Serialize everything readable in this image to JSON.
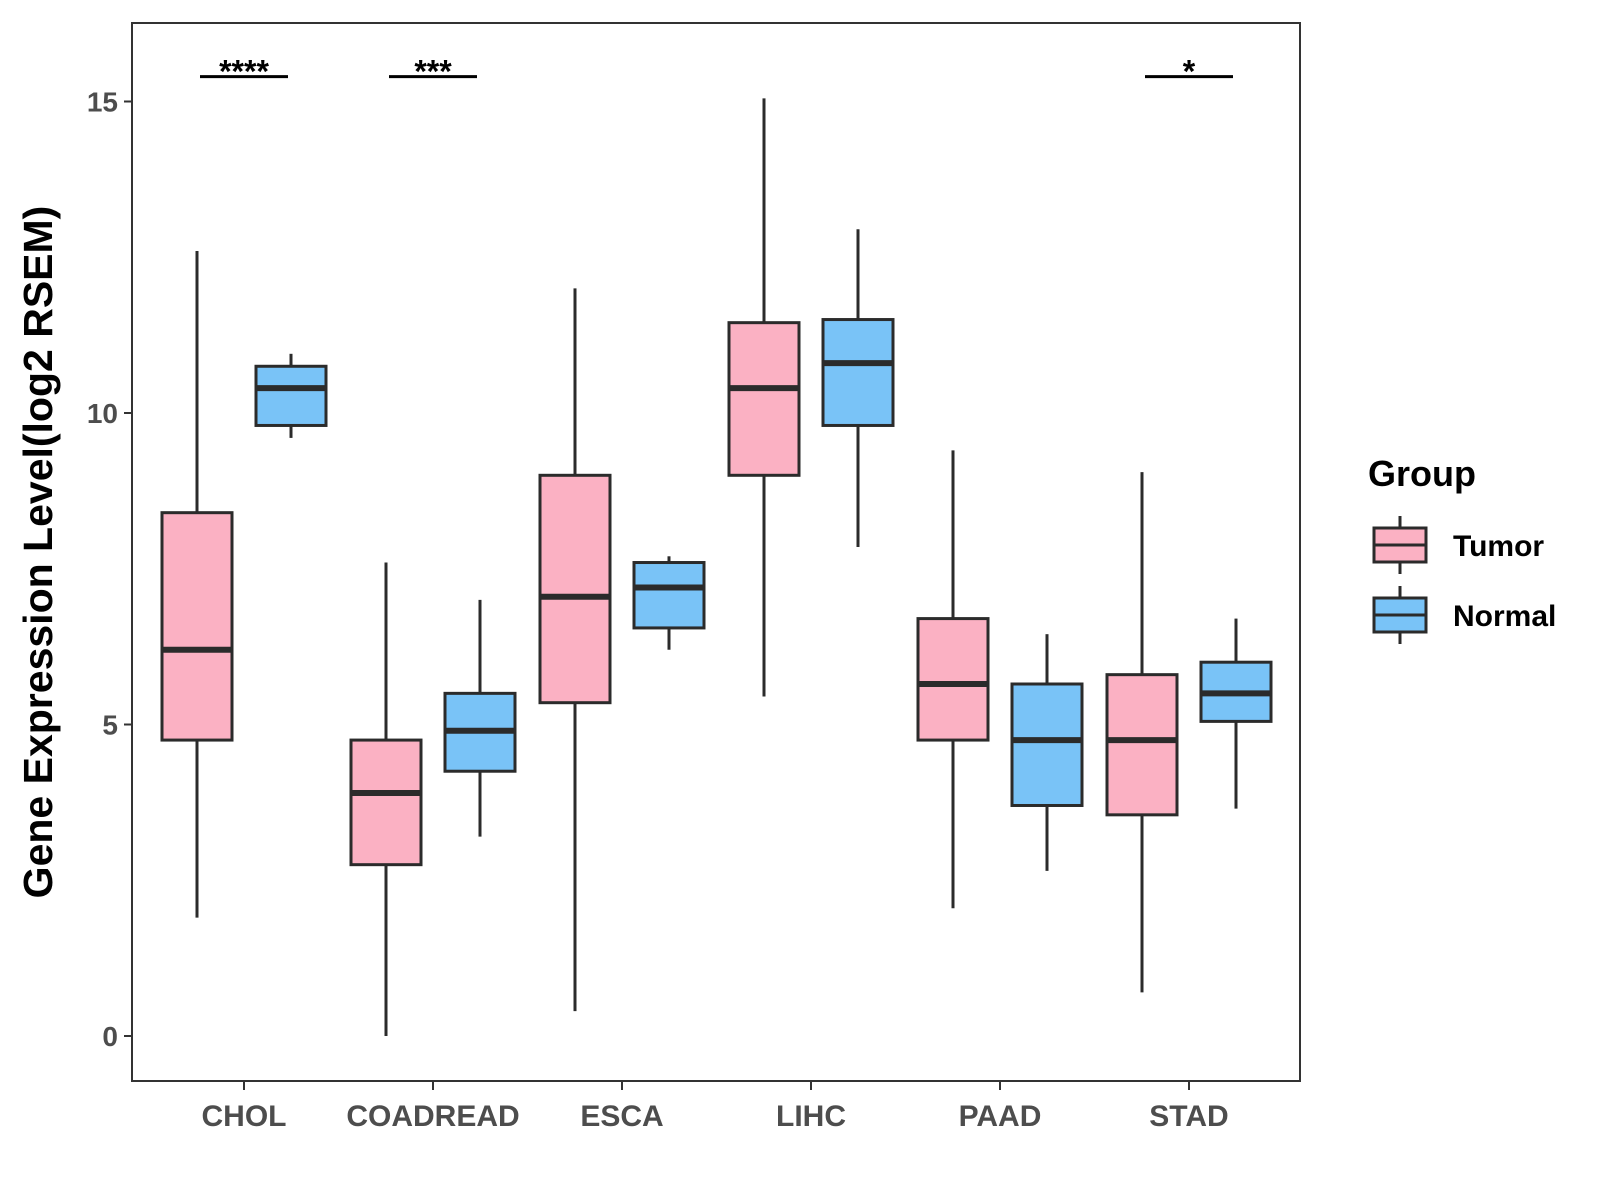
{
  "chart_data": {
    "type": "boxplot",
    "ylabel": "Gene Expression Level(log2 RSEM)",
    "xlabel": "",
    "ylim": [
      -0.75,
      16.2
    ],
    "yticks": [
      0,
      5,
      10,
      15
    ],
    "categories": [
      "CHOL",
      "COADREAD",
      "ESCA",
      "LIHC",
      "PAAD",
      "STAD"
    ],
    "legend": {
      "title": "Group",
      "position": "right",
      "entries": [
        {
          "name": "Tumor",
          "color": "#fbb1c3"
        },
        {
          "name": "Normal",
          "color": "#79c3f7"
        }
      ]
    },
    "series": [
      {
        "name": "Tumor",
        "color": "#fbb1c3",
        "boxes": [
          {
            "category": "CHOL",
            "min": 1.9,
            "q1": 4.75,
            "median": 6.2,
            "q3": 8.4,
            "max": 12.6
          },
          {
            "category": "COADREAD",
            "min": 0.0,
            "q1": 2.75,
            "median": 3.9,
            "q3": 4.75,
            "max": 7.6
          },
          {
            "category": "ESCA",
            "min": 0.4,
            "q1": 5.35,
            "median": 7.05,
            "q3": 9.0,
            "max": 12.0
          },
          {
            "category": "LIHC",
            "min": 5.45,
            "q1": 9.0,
            "median": 10.4,
            "q3": 11.45,
            "max": 15.05
          },
          {
            "category": "PAAD",
            "min": 2.05,
            "q1": 4.75,
            "median": 5.65,
            "q3": 6.7,
            "max": 9.4
          },
          {
            "category": "STAD",
            "min": 0.7,
            "q1": 3.55,
            "median": 4.75,
            "q3": 5.8,
            "max": 9.05
          }
        ]
      },
      {
        "name": "Normal",
        "color": "#79c3f7",
        "boxes": [
          {
            "category": "CHOL",
            "min": 9.6,
            "q1": 9.8,
            "median": 10.4,
            "q3": 10.75,
            "max": 10.95
          },
          {
            "category": "COADREAD",
            "min": 3.2,
            "q1": 4.25,
            "median": 4.9,
            "q3": 5.5,
            "max": 7.0
          },
          {
            "category": "ESCA",
            "min": 6.2,
            "q1": 6.55,
            "median": 7.2,
            "q3": 7.6,
            "max": 7.7
          },
          {
            "category": "LIHC",
            "min": 7.85,
            "q1": 9.8,
            "median": 10.8,
            "q3": 11.5,
            "max": 12.95
          },
          {
            "category": "PAAD",
            "min": 2.65,
            "q1": 3.7,
            "median": 4.75,
            "q3": 5.65,
            "max": 6.45
          },
          {
            "category": "STAD",
            "min": 3.65,
            "q1": 5.05,
            "median": 5.5,
            "q3": 6.0,
            "max": 6.7
          }
        ]
      }
    ],
    "significance": [
      {
        "category": "CHOL",
        "label": "****",
        "y": 15.4
      },
      {
        "category": "COADREAD",
        "label": "***",
        "y": 15.4
      },
      {
        "category": "STAD",
        "label": "*",
        "y": 15.4
      }
    ]
  }
}
